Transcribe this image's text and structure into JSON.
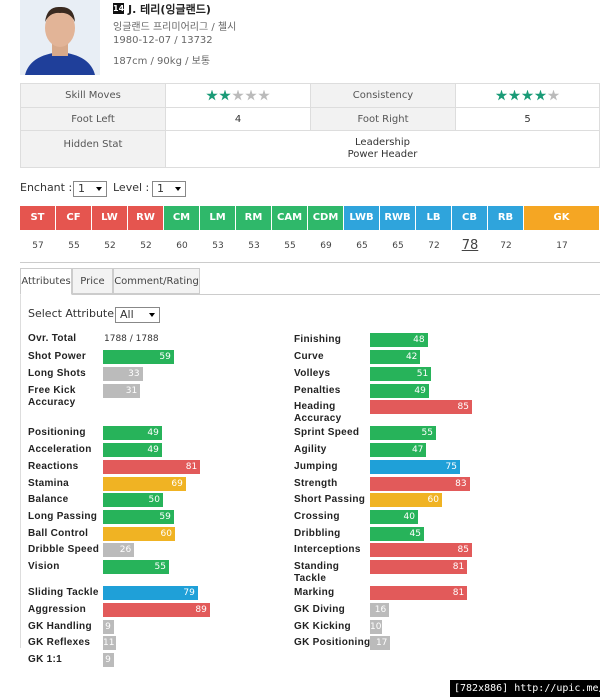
{
  "header": {
    "number": "14",
    "name": "J. 테리(잉글랜드)",
    "league": "잉글랜드 프리미어리그 / 첼시",
    "birth": "1980-12-07 / 13732",
    "body": "187cm / 90kg / 보통"
  },
  "info": {
    "skill_moves": {
      "label": "Skill Moves",
      "stars": 2,
      "max_stars": 5
    },
    "consistency": {
      "label": "Consistency",
      "stars": 4,
      "max_stars": 5
    },
    "foot_left": {
      "label": "Foot Left",
      "value": 4
    },
    "foot_right": {
      "label": "Foot Right",
      "value": 5
    },
    "hidden_stat": {
      "label": "Hidden Stat",
      "values": [
        "Leadership",
        "Power Header"
      ]
    }
  },
  "enchant": {
    "label": "Enchant :",
    "value": "1"
  },
  "level": {
    "label": "Level :",
    "value": "1"
  },
  "positions": [
    {
      "name": "ST",
      "value": 57,
      "color": "#e5554f"
    },
    {
      "name": "CF",
      "value": 55,
      "color": "#e5554f"
    },
    {
      "name": "LW",
      "value": 52,
      "color": "#e5554f"
    },
    {
      "name": "RW",
      "value": 52,
      "color": "#e5554f"
    },
    {
      "name": "CM",
      "value": 60,
      "color": "#2fb86a"
    },
    {
      "name": "LM",
      "value": 53,
      "color": "#2fb86a"
    },
    {
      "name": "RM",
      "value": 53,
      "color": "#2fb86a"
    },
    {
      "name": "CAM",
      "value": 55,
      "color": "#2fb86a"
    },
    {
      "name": "CDM",
      "value": 69,
      "color": "#2fb86a"
    },
    {
      "name": "LWB",
      "value": 65,
      "color": "#2fa4dc"
    },
    {
      "name": "RWB",
      "value": 65,
      "color": "#2fa4dc"
    },
    {
      "name": "LB",
      "value": 72,
      "color": "#2fa4dc"
    },
    {
      "name": "CB",
      "value": 78,
      "color": "#2fa4dc"
    },
    {
      "name": "RB",
      "value": 72,
      "color": "#2fa4dc"
    },
    {
      "name": "GK",
      "value": 17,
      "color": "#f5a623"
    }
  ],
  "tabs": [
    "Attributes",
    "Price",
    "Comment/Rating"
  ],
  "select_attribute": {
    "label": "Select Attribute :",
    "value": "All"
  },
  "overall": {
    "label": "Ovr. Total",
    "value": "1788 / 1788"
  },
  "attributes_left": [
    {
      "name": "Shot Power",
      "value": 59,
      "color": "#27b35a"
    },
    {
      "name": "Long Shots",
      "value": 33,
      "color": "#bbbbbb"
    },
    {
      "name": "Free Kick Accuracy",
      "value": 31,
      "color": "#bbbbbb"
    },
    {
      "name": "Positioning",
      "value": 49,
      "color": "#27b35a"
    },
    {
      "name": "Acceleration",
      "value": 49,
      "color": "#27b35a"
    },
    {
      "name": "Reactions",
      "value": 81,
      "color": "#e25a5a"
    },
    {
      "name": "Stamina",
      "value": 69,
      "color": "#f0b323"
    },
    {
      "name": "Balance",
      "value": 50,
      "color": "#27b35a"
    },
    {
      "name": "Long Passing",
      "value": 59,
      "color": "#27b35a"
    },
    {
      "name": "Ball Control",
      "value": 60,
      "color": "#f0b323"
    },
    {
      "name": "Dribble Speed",
      "value": 26,
      "color": "#bbbbbb"
    },
    {
      "name": "Vision",
      "value": 55,
      "color": "#27b35a"
    },
    {
      "name": "Sliding Tackle",
      "value": 79,
      "color": "#1fa0d8"
    },
    {
      "name": "Aggression",
      "value": 89,
      "color": "#e25a5a"
    },
    {
      "name": "GK Handling",
      "value": 9,
      "color": "#bbbbbb"
    },
    {
      "name": "GK Reflexes",
      "value": 11,
      "color": "#bbbbbb"
    },
    {
      "name": "GK 1:1",
      "value": 9,
      "color": "#bbbbbb"
    }
  ],
  "attributes_right": [
    {
      "name": "Finishing",
      "value": 48,
      "color": "#27b35a"
    },
    {
      "name": "Curve",
      "value": 42,
      "color": "#27b35a"
    },
    {
      "name": "Volleys",
      "value": 51,
      "color": "#27b35a"
    },
    {
      "name": "Penalties",
      "value": 49,
      "color": "#27b35a"
    },
    {
      "name": "Heading Accuracy",
      "value": 85,
      "color": "#e25a5a"
    },
    {
      "name": "Sprint Speed",
      "value": 55,
      "color": "#27b35a"
    },
    {
      "name": "Agility",
      "value": 47,
      "color": "#27b35a"
    },
    {
      "name": "Jumping",
      "value": 75,
      "color": "#1fa0d8"
    },
    {
      "name": "Strength",
      "value": 83,
      "color": "#e25a5a"
    },
    {
      "name": "Short Passing",
      "value": 60,
      "color": "#f0b323"
    },
    {
      "name": "Crossing",
      "value": 40,
      "color": "#27b35a"
    },
    {
      "name": "Dribbling",
      "value": 45,
      "color": "#27b35a"
    },
    {
      "name": "Interceptions",
      "value": 85,
      "color": "#e25a5a"
    },
    {
      "name": "Standing Tackle",
      "value": 81,
      "color": "#e25a5a"
    },
    {
      "name": "Marking",
      "value": 81,
      "color": "#e25a5a"
    },
    {
      "name": "GK Diving",
      "value": 16,
      "color": "#bbbbbb"
    },
    {
      "name": "GK Kicking",
      "value": 10,
      "color": "#bbbbbb"
    },
    {
      "name": "GK Positioning",
      "value": 17,
      "color": "#bbbbbb"
    }
  ],
  "footer": {
    "size": "[782x886]",
    "url": "http://upic.me/"
  }
}
